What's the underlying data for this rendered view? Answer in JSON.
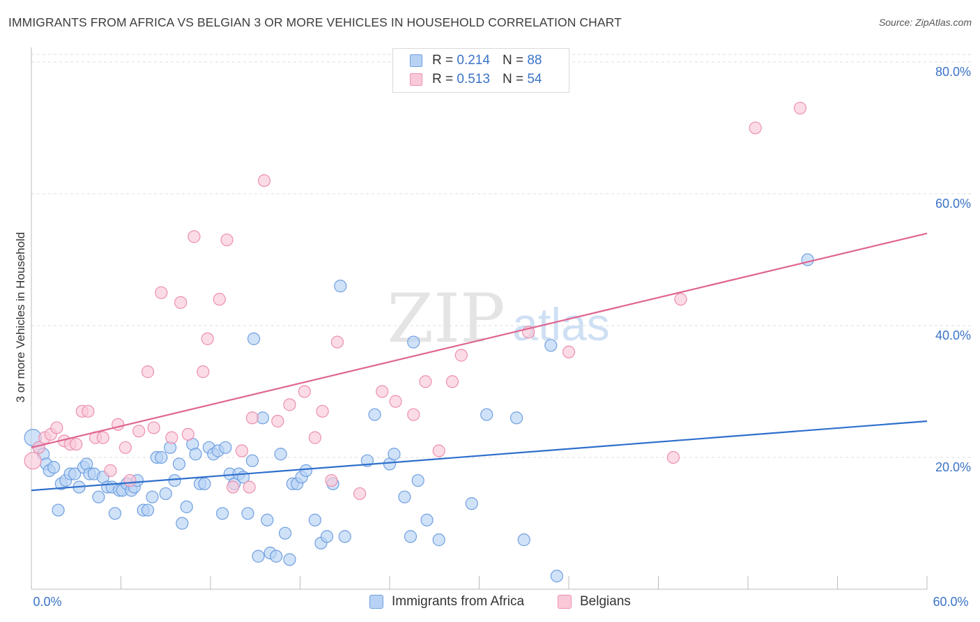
{
  "header": {
    "title": "IMMIGRANTS FROM AFRICA VS BELGIAN 3 OR MORE VEHICLES IN HOUSEHOLD CORRELATION CHART",
    "source": "Source: ZipAtlas.com"
  },
  "watermark": {
    "zip": "ZIP",
    "atlas": "atlas"
  },
  "stats_legend": [
    {
      "r_label": "R =",
      "r_value": "0.214",
      "n_label": "N =",
      "n_value": "88",
      "color": "#a8c8f0",
      "stroke": "#5b8fd6"
    },
    {
      "r_label": "R =",
      "r_value": "0.513",
      "n_label": "N =",
      "n_value": "54",
      "color": "#f7bcd0",
      "stroke": "#e57aa0"
    }
  ],
  "colors": {
    "africa_fill": "#b7d2f4",
    "africa_stroke": "#6f9fe0",
    "africa_line": "#2f6fcc",
    "belgian_fill": "#f9c9d8",
    "belgian_stroke": "#ec8fb0",
    "belgian_line": "#e0658f",
    "axis_label": "#3a73c8",
    "grid": "#dddddd"
  },
  "chart_data": {
    "type": "scatter",
    "title": "IMMIGRANTS FROM AFRICA VS BELGIAN 3 OR MORE VEHICLES IN HOUSEHOLD CORRELATION CHART",
    "xlabel": "",
    "ylabel": "3 or more Vehicles in Household",
    "xlim": [
      0,
      60
    ],
    "ylim": [
      0,
      82
    ],
    "x_tick_labels": [
      "0.0%",
      "60.0%"
    ],
    "y_ticks": [
      20,
      40,
      60,
      80
    ],
    "y_tick_labels": [
      "20.0%",
      "40.0%",
      "60.0%",
      "80.0%"
    ],
    "grid": true,
    "legend_position": "bottom-center",
    "series": [
      {
        "name": "Immigrants from Africa",
        "trend": {
          "x": [
            0,
            60
          ],
          "y": [
            15.0,
            25.5
          ]
        },
        "points": [
          [
            0.1,
            23.0
          ],
          [
            0.5,
            21.5
          ],
          [
            0.8,
            20.5
          ],
          [
            1.0,
            19.0
          ],
          [
            1.2,
            18.0
          ],
          [
            1.5,
            18.5
          ],
          [
            1.8,
            12.0
          ],
          [
            2.0,
            16.0
          ],
          [
            2.3,
            16.5
          ],
          [
            2.6,
            17.5
          ],
          [
            2.9,
            17.5
          ],
          [
            3.2,
            15.5
          ],
          [
            3.5,
            18.5
          ],
          [
            3.7,
            19.0
          ],
          [
            3.9,
            17.5
          ],
          [
            4.2,
            17.5
          ],
          [
            4.5,
            14.0
          ],
          [
            4.8,
            17.0
          ],
          [
            5.1,
            15.5
          ],
          [
            5.4,
            15.5
          ],
          [
            5.6,
            11.5
          ],
          [
            5.9,
            15.0
          ],
          [
            6.1,
            15.0
          ],
          [
            6.4,
            16.0
          ],
          [
            6.7,
            15.0
          ],
          [
            6.9,
            15.5
          ],
          [
            7.1,
            16.5
          ],
          [
            7.5,
            12.0
          ],
          [
            7.8,
            12.0
          ],
          [
            8.1,
            14.0
          ],
          [
            8.4,
            20.0
          ],
          [
            8.7,
            20.0
          ],
          [
            9.0,
            14.5
          ],
          [
            9.3,
            21.5
          ],
          [
            9.6,
            16.5
          ],
          [
            9.9,
            19.0
          ],
          [
            10.1,
            10.0
          ],
          [
            10.4,
            12.5
          ],
          [
            10.8,
            22.0
          ],
          [
            11.0,
            20.5
          ],
          [
            11.3,
            16.0
          ],
          [
            11.6,
            16.0
          ],
          [
            11.9,
            21.5
          ],
          [
            12.2,
            20.5
          ],
          [
            12.5,
            21.0
          ],
          [
            12.8,
            11.5
          ],
          [
            13.0,
            21.5
          ],
          [
            13.3,
            17.5
          ],
          [
            13.6,
            16.0
          ],
          [
            13.9,
            17.5
          ],
          [
            14.2,
            17.0
          ],
          [
            14.5,
            11.5
          ],
          [
            14.8,
            19.5
          ],
          [
            14.9,
            38.0
          ],
          [
            15.2,
            5.0
          ],
          [
            15.5,
            26.0
          ],
          [
            15.8,
            10.5
          ],
          [
            16.0,
            5.5
          ],
          [
            16.4,
            5.0
          ],
          [
            16.7,
            20.5
          ],
          [
            17.0,
            8.5
          ],
          [
            17.3,
            4.5
          ],
          [
            17.5,
            16.0
          ],
          [
            17.8,
            16.0
          ],
          [
            18.1,
            17.0
          ],
          [
            18.4,
            18.0
          ],
          [
            19.0,
            10.5
          ],
          [
            19.4,
            7.0
          ],
          [
            19.8,
            8.0
          ],
          [
            20.2,
            16.0
          ],
          [
            20.7,
            46.0
          ],
          [
            21.0,
            8.0
          ],
          [
            22.5,
            19.5
          ],
          [
            23.0,
            26.5
          ],
          [
            24.0,
            19.0
          ],
          [
            24.3,
            20.5
          ],
          [
            25.0,
            14.0
          ],
          [
            25.4,
            8.0
          ],
          [
            25.6,
            37.5
          ],
          [
            25.9,
            16.5
          ],
          [
            26.5,
            10.5
          ],
          [
            27.3,
            7.5
          ],
          [
            29.5,
            13.0
          ],
          [
            30.5,
            26.5
          ],
          [
            32.5,
            26.0
          ],
          [
            33.0,
            7.5
          ],
          [
            34.8,
            37.0
          ],
          [
            35.2,
            2.0
          ],
          [
            52.0,
            50.0
          ]
        ]
      },
      {
        "name": "Belgians",
        "trend": {
          "x": [
            0,
            60
          ],
          "y": [
            21.5,
            54.0
          ]
        },
        "points": [
          [
            0.1,
            19.5
          ],
          [
            0.5,
            21.5
          ],
          [
            0.9,
            23.0
          ],
          [
            1.3,
            23.5
          ],
          [
            1.7,
            24.5
          ],
          [
            2.2,
            22.5
          ],
          [
            2.6,
            22.0
          ],
          [
            3.0,
            22.0
          ],
          [
            3.4,
            27.0
          ],
          [
            3.8,
            27.0
          ],
          [
            4.3,
            23.0
          ],
          [
            4.8,
            23.0
          ],
          [
            5.3,
            18.0
          ],
          [
            5.8,
            25.0
          ],
          [
            6.3,
            21.5
          ],
          [
            6.6,
            16.5
          ],
          [
            7.2,
            24.0
          ],
          [
            7.8,
            33.0
          ],
          [
            8.2,
            24.5
          ],
          [
            8.7,
            45.0
          ],
          [
            9.4,
            23.0
          ],
          [
            10.0,
            43.5
          ],
          [
            10.5,
            23.5
          ],
          [
            10.9,
            53.5
          ],
          [
            11.5,
            33.0
          ],
          [
            11.8,
            38.0
          ],
          [
            12.6,
            44.0
          ],
          [
            13.1,
            53.0
          ],
          [
            13.5,
            15.5
          ],
          [
            14.1,
            21.0
          ],
          [
            14.6,
            15.5
          ],
          [
            14.8,
            26.0
          ],
          [
            15.6,
            62.0
          ],
          [
            16.5,
            25.5
          ],
          [
            17.3,
            28.0
          ],
          [
            18.3,
            30.0
          ],
          [
            19.0,
            23.0
          ],
          [
            19.5,
            27.0
          ],
          [
            20.1,
            16.5
          ],
          [
            20.5,
            37.5
          ],
          [
            22.0,
            14.5
          ],
          [
            23.5,
            30.0
          ],
          [
            24.4,
            28.5
          ],
          [
            25.6,
            26.5
          ],
          [
            26.4,
            31.5
          ],
          [
            27.3,
            21.0
          ],
          [
            28.2,
            31.5
          ],
          [
            28.8,
            35.5
          ],
          [
            33.3,
            39.0
          ],
          [
            36.0,
            36.0
          ],
          [
            43.0,
            20.0
          ],
          [
            43.5,
            44.0
          ],
          [
            48.5,
            70.0
          ],
          [
            51.5,
            73.0
          ]
        ]
      }
    ]
  },
  "bottom_legend": [
    {
      "label": "Immigrants from Africa"
    },
    {
      "label": "Belgians"
    }
  ]
}
